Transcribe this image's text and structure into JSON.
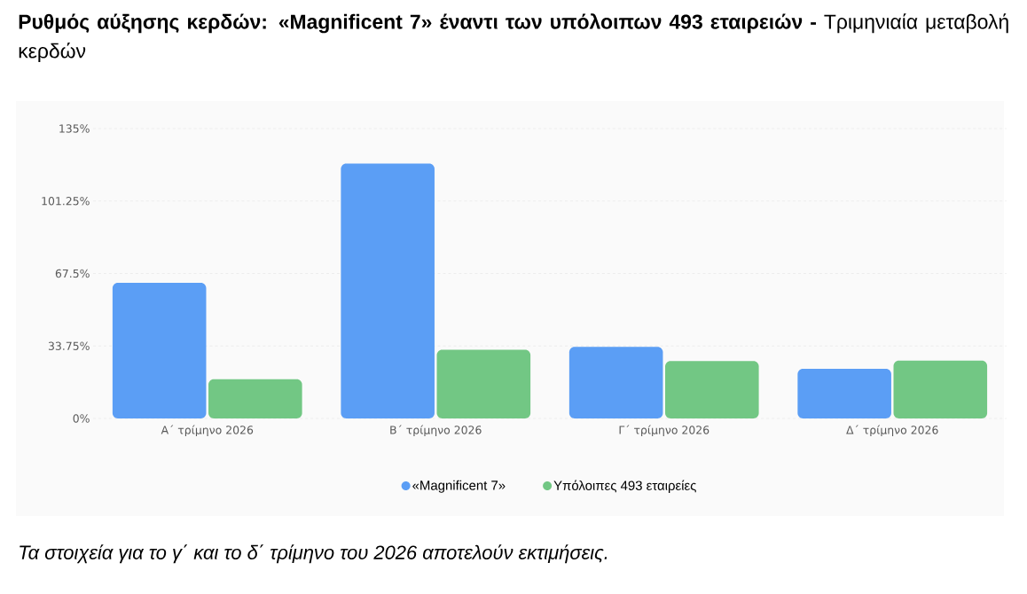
{
  "chart_data": {
    "type": "bar",
    "title": "**Ρυθμός αύξησης κερδών: «Magnificent 7» έναντι των υπόλοιπων 493 εταιρειών -** Τριμηνιαία μεταβολή κερδών",
    "categories": [
      "Α΄ τρίμηνο 2026",
      "Β΄ τρίμηνο 2026",
      "Γ΄ τρίμηνο 2026",
      "Δ΄ τρίμηνο 2026"
    ],
    "series": [
      {
        "name": "«Magnificent 7»",
        "color": "#5b9ef5",
        "values": [
          63.2,
          118.7,
          33.3,
          23.1
        ]
      },
      {
        "name": "Υπόλοιπες 493 εταιρείες",
        "color": "#72c784",
        "values": [
          18.3,
          32.0,
          26.7,
          26.9
        ]
      }
    ],
    "ylim": [
      0,
      135
    ],
    "yticks": [
      {
        "value": 0,
        "label": "0%"
      },
      {
        "value": 33.75,
        "label": "33.75%"
      },
      {
        "value": 67.5,
        "label": "67.5%"
      },
      {
        "value": 101.25,
        "label": "101.25%"
      },
      {
        "value": 135,
        "label": "135%"
      }
    ],
    "grid": "y",
    "legend": "bottom",
    "annotations": [
      "Τα στοιχεία για το γ΄ και το δ΄ τρίμηνο του 2026 αποτελούν εκτιμήσεις."
    ]
  }
}
